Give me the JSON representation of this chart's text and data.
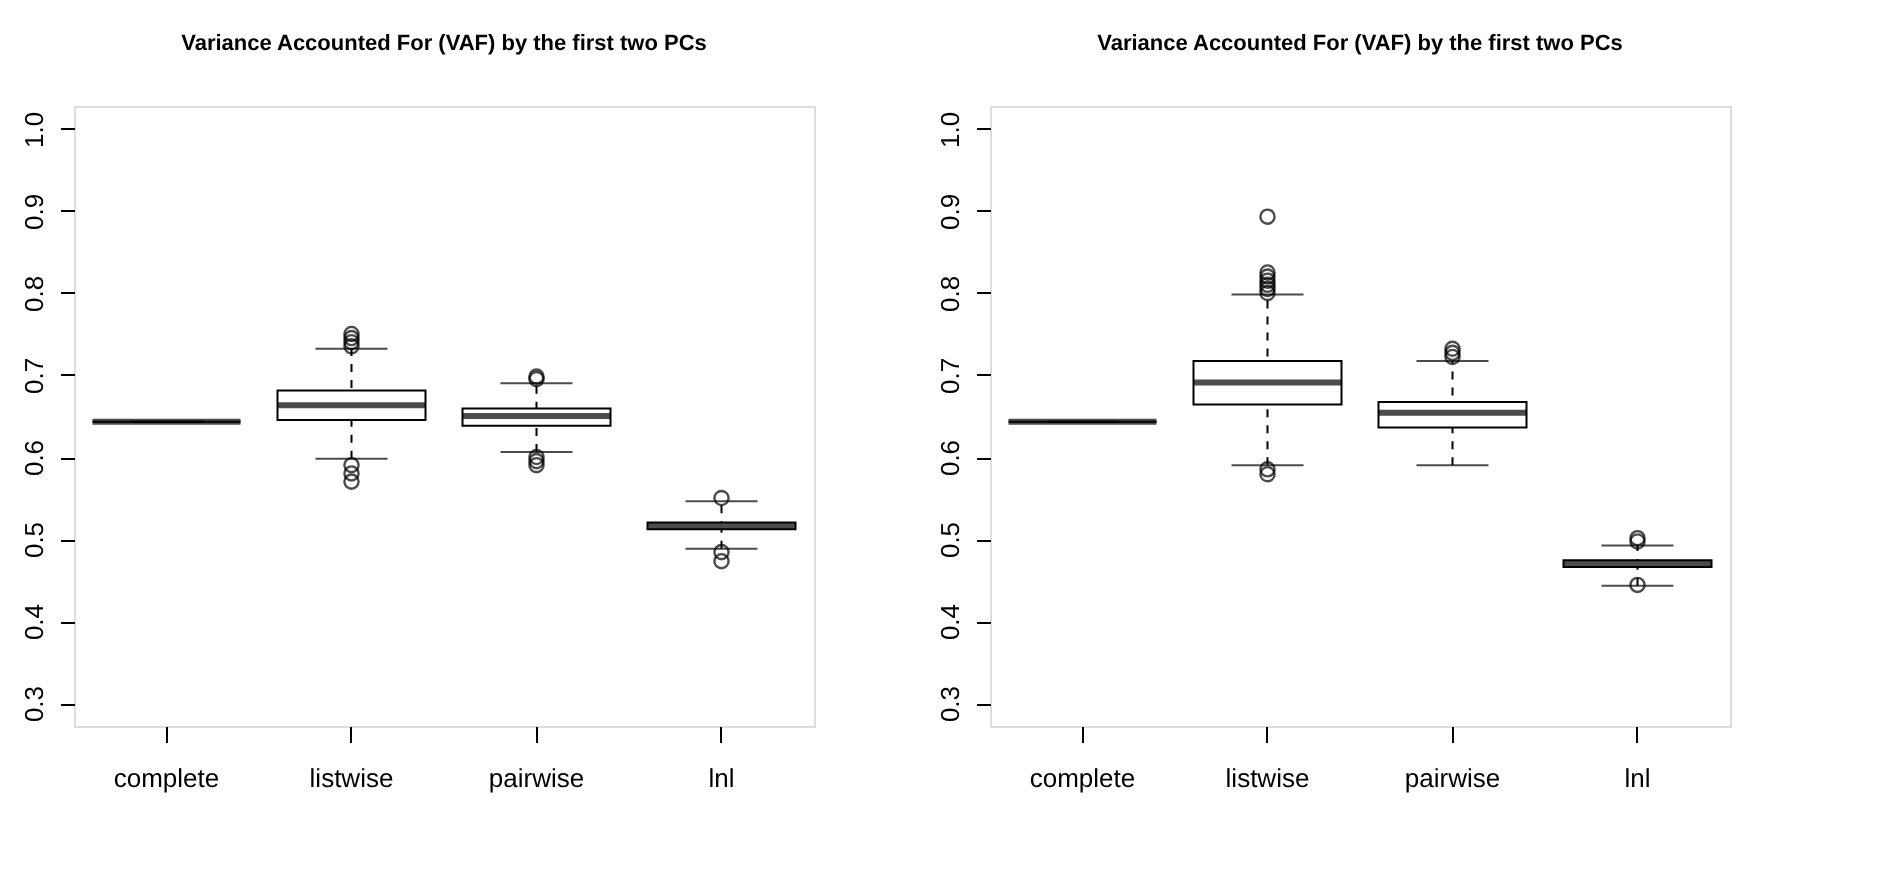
{
  "chart_data": [
    {
      "type": "box",
      "title": "Variance Accounted For (VAF) by the first two PCs",
      "categories": [
        "complete",
        "listwise",
        "pairwise",
        "lnl"
      ],
      "ylim": [
        0.272,
        1.028
      ],
      "yticks": [
        0.3,
        0.4,
        0.5,
        0.6,
        0.7,
        0.8,
        0.9,
        {
          "value": 1.0,
          "label": "1.0"
        }
      ],
      "grid": false,
      "boxes": [
        {
          "low": 0.643,
          "q1": 0.643,
          "median": 0.643,
          "q3": 0.643,
          "high": 0.643
        },
        {
          "low": 0.598,
          "q1": 0.645,
          "median": 0.663,
          "q3": 0.681,
          "high": 0.732,
          "outliers": [
            0.735,
            0.74,
            0.745,
            0.75,
            0.59,
            0.58,
            0.57
          ]
        },
        {
          "low": 0.606,
          "q1": 0.638,
          "median": 0.65,
          "q3": 0.659,
          "high": 0.69,
          "outliers": [
            0.695,
            0.698,
            0.6,
            0.595,
            0.59
          ]
        },
        {
          "low": 0.488,
          "q1": 0.512,
          "median": 0.516,
          "q3": 0.52,
          "high": 0.546,
          "outliers": [
            0.55,
            0.484,
            0.473
          ]
        }
      ]
    },
    {
      "type": "box",
      "title": "Variance Accounted For (VAF) by the first two PCs",
      "categories": [
        "complete",
        "listwise",
        "pairwise",
        "lnl"
      ],
      "ylim": [
        0.272,
        1.028
      ],
      "yticks": [
        0.3,
        0.4,
        0.5,
        0.6,
        0.7,
        0.8,
        0.9,
        {
          "value": 1.0,
          "label": "1.0"
        }
      ],
      "grid": false,
      "boxes": [
        {
          "low": 0.643,
          "q1": 0.643,
          "median": 0.643,
          "q3": 0.643,
          "high": 0.643
        },
        {
          "low": 0.59,
          "q1": 0.664,
          "median": 0.691,
          "q3": 0.717,
          "high": 0.798,
          "outliers": [
            0.8,
            0.805,
            0.81,
            0.815,
            0.82,
            0.825,
            0.893,
            0.585,
            0.579
          ]
        },
        {
          "low": 0.59,
          "q1": 0.636,
          "median": 0.654,
          "q3": 0.667,
          "high": 0.717,
          "outliers": [
            0.722,
            0.727,
            0.732
          ]
        },
        {
          "low": 0.443,
          "q1": 0.466,
          "median": 0.47,
          "q3": 0.474,
          "high": 0.492,
          "outliers": [
            0.497,
            0.501,
            0.444
          ]
        }
      ]
    }
  ]
}
